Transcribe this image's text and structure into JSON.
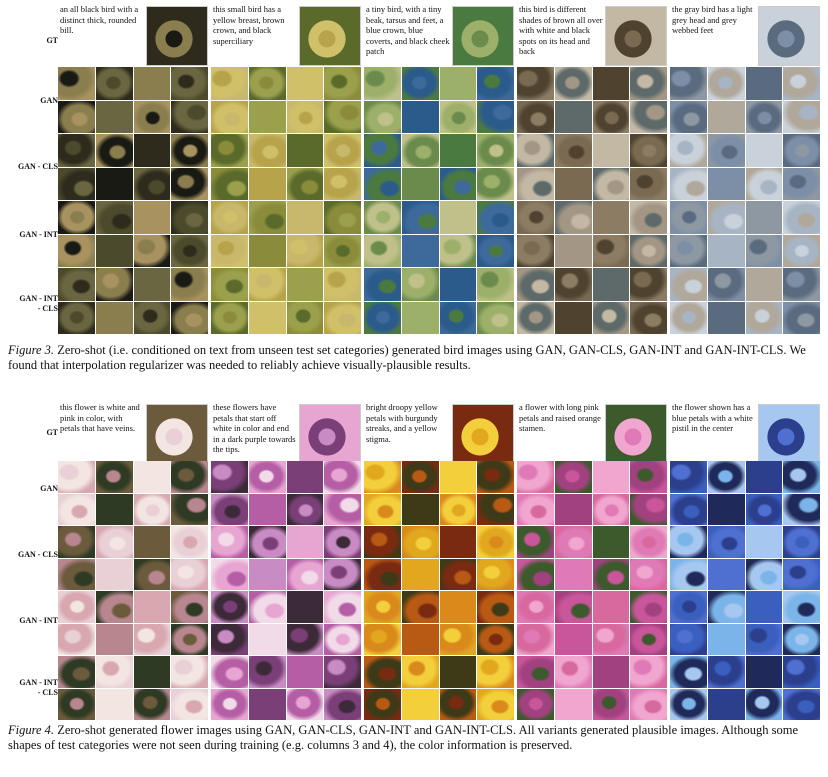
{
  "figure3": {
    "gt_label": "GT",
    "rows": [
      "GAN",
      "GAN - CLS",
      "GAN - INT",
      "GAN - INT\n- CLS"
    ],
    "columns": [
      {
        "text": "an all black bird with a distinct thick, rounded bill.",
        "palette": [
          "#1a1a14",
          "#4b4a2c",
          "#8a7d4e",
          "#2e2b1c",
          "#a89260",
          "#6a6641"
        ]
      },
      {
        "text": "this small bird has a yellow breast, brown crown, and black superciliary",
        "palette": [
          "#b6a34a",
          "#8a8c3a",
          "#d1c06a",
          "#5a6a2a",
          "#c8b86b",
          "#9ba04c"
        ]
      },
      {
        "text": "a tiny bird, with a tiny beak, tarsus and feet, a blue crown, blue coverts, and black cheek patch",
        "palette": [
          "#6b8b4c",
          "#3d6a9a",
          "#9cb06a",
          "#4a7a40",
          "#bfc08a",
          "#2b5b8b"
        ]
      },
      {
        "text": "this bird is different shades of brown all over with white and black spots on its head and back",
        "palette": [
          "#7a6a52",
          "#a39684",
          "#4f4330",
          "#c3b8a4",
          "#8c7c64",
          "#5e6a6a"
        ]
      },
      {
        "text": "the gray bird has a light grey head and grey webbed feet",
        "palette": [
          "#7d8fa6",
          "#a7b4c4",
          "#5a6b80",
          "#c9d1da",
          "#8e98a3",
          "#b0a89a"
        ]
      }
    ],
    "caption_label": "Figure 3.",
    "caption": "Zero-shot (i.e. conditioned on text from unseen test set categories) generated bird images using GAN, GAN-CLS, GAN-INT and GAN-INT-CLS. We found that interpolation regularizer was needed to reliably achieve visually-plausible results."
  },
  "figure4": {
    "gt_label": "GT",
    "rows": [
      "GAN",
      "GAN - CLS",
      "GAN - INT",
      "GAN - INT\n- CLS"
    ],
    "columns": [
      {
        "text": "this flower is white and pink in color, with petals that have veins.",
        "palette": [
          "#e9d0d6",
          "#b7868e",
          "#f3e6e2",
          "#6b5a3c",
          "#d8a7b0",
          "#2f3a24"
        ]
      },
      {
        "text": "these flowers have petals that start off white in color and end in a dark purple towards the tips.",
        "palette": [
          "#c98bc4",
          "#f2dbe8",
          "#7b3f78",
          "#e7a6d2",
          "#3c2a38",
          "#b55ea6"
        ]
      },
      {
        "text": "bright droopy yellow petals with burgundy streaks, and a yellow stigma.",
        "palette": [
          "#e1a71f",
          "#b85a14",
          "#f3cf3c",
          "#7a2a10",
          "#d98a1b",
          "#3e3a18"
        ]
      },
      {
        "text": "a flower with long pink petals and raised orange stamen.",
        "palette": [
          "#e07ab7",
          "#c9559a",
          "#f0a6cf",
          "#3d5a2c",
          "#d8699f",
          "#a24180"
        ]
      },
      {
        "text": "the flower shown has a blue petals with a white pistil in the center",
        "palette": [
          "#4f6fd1",
          "#7ab4e8",
          "#2b3f8c",
          "#a6c8f0",
          "#3a5fbf",
          "#1f2a5a"
        ]
      }
    ],
    "caption_label": "Figure 4.",
    "caption": "Zero-shot generated flower images using GAN, GAN-CLS, GAN-INT and GAN-INT-CLS. All variants generated plausible images. Although some shapes of test categories were not seen during training (e.g. columns 3 and 4), the color information is preserved."
  }
}
